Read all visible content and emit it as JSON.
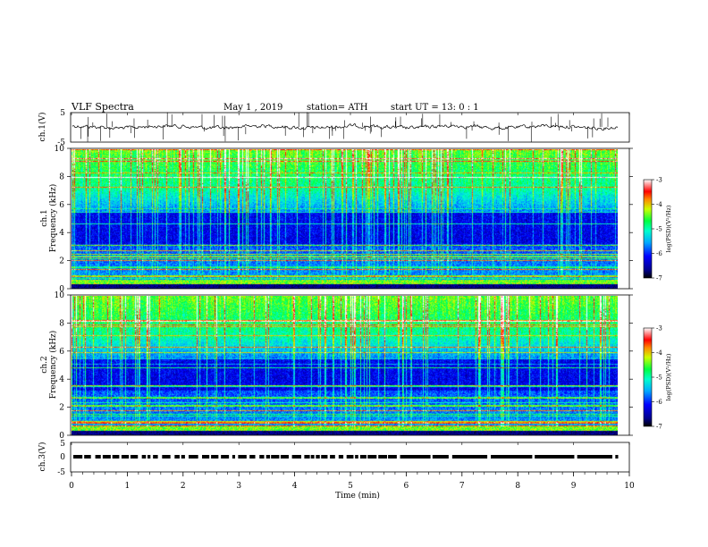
{
  "header": {
    "title": "VLF  Spectra",
    "date": "May 1  , 2019",
    "station": "station= ATH",
    "start": "start  UT  =    13: 0   : 1"
  },
  "chart_data": [
    {
      "type": "line",
      "name": "ch1-waveform",
      "ylabel": "ch.1(V)",
      "ylim": [
        -5,
        5
      ],
      "yticks": [
        "5",
        "-5"
      ],
      "xlim": [
        0,
        10
      ],
      "trace_color": "#000000"
    },
    {
      "type": "heatmap",
      "name": "ch1-spectrogram",
      "ylabel": "ch.1\nFrequency (kHz)",
      "ylim": [
        0,
        10
      ],
      "yticks": [
        "0",
        "2",
        "4",
        "6",
        "8",
        "10"
      ],
      "xlim": [
        0,
        10
      ],
      "data_end_min": 9.8,
      "colorbar": {
        "label": "log(PSD)(V²/Hz)",
        "range": [
          -7,
          -3
        ],
        "ticks": [
          "-3",
          "-4",
          "-5",
          "-6",
          "-7"
        ]
      }
    },
    {
      "type": "heatmap",
      "name": "ch2-spectrogram",
      "ylabel": "ch.2\nFrequency (kHz)",
      "ylim": [
        0,
        10
      ],
      "yticks": [
        "0",
        "2",
        "4",
        "6",
        "8",
        "10"
      ],
      "xlim": [
        0,
        10
      ],
      "data_end_min": 9.8,
      "colorbar": {
        "label": "log(PSD)(V²/Hz)",
        "range": [
          -7,
          -3
        ],
        "ticks": [
          "-3",
          "-4",
          "-5",
          "-6",
          "-7"
        ]
      }
    },
    {
      "type": "line",
      "name": "ch3-signal",
      "ylabel": "ch.3(V)",
      "ylim": [
        -5,
        5
      ],
      "yticks": [
        "5",
        "0",
        "-5"
      ],
      "xlim": [
        0,
        10
      ],
      "trace_color": "#000000"
    }
  ],
  "xaxis": {
    "label": "Time  (min)",
    "ticks": [
      "0",
      "1",
      "2",
      "3",
      "4",
      "5",
      "6",
      "7",
      "8",
      "9",
      "10"
    ]
  },
  "colors": {
    "low": "#00008b",
    "mid": "#00ff80",
    "high": "#ff0000",
    "blank": "#ffffff"
  }
}
